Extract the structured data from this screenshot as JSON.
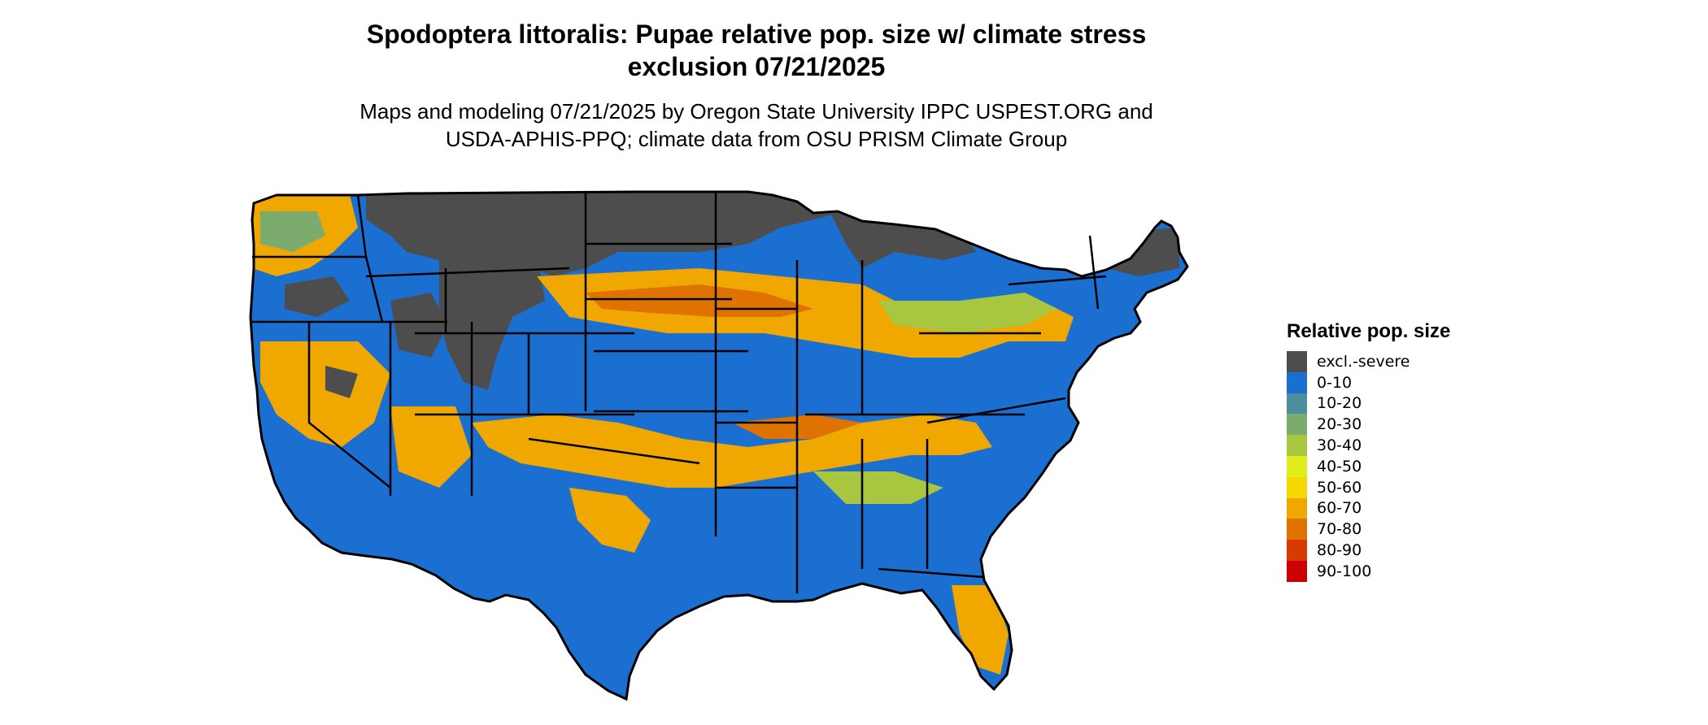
{
  "title": {
    "line1": "Spodoptera littoralis: Pupae relative pop. size w/ climate stress",
    "line2": "exclusion 07/21/2025"
  },
  "subtitle": {
    "line1": "Maps and modeling 07/21/2025 by Oregon State University IPPC USPEST.ORG and",
    "line2": "USDA-APHIS-PPQ; climate data from OSU PRISM Climate Group"
  },
  "legend": {
    "title": "Relative pop. size",
    "items": [
      {
        "label": "excl.-severe",
        "color": "#4d4d4d"
      },
      {
        "label": "0-10",
        "color": "#1a6fd1"
      },
      {
        "label": "10-20",
        "color": "#4b8ea0"
      },
      {
        "label": "20-30",
        "color": "#7cab6e"
      },
      {
        "label": "30-40",
        "color": "#a8c640"
      },
      {
        "label": "40-50",
        "color": "#dfee1a"
      },
      {
        "label": "50-60",
        "color": "#f5d800"
      },
      {
        "label": "60-70",
        "color": "#f0a800"
      },
      {
        "label": "70-80",
        "color": "#e07200"
      },
      {
        "label": "80-90",
        "color": "#d93a00"
      },
      {
        "label": "90-100",
        "color": "#cc0000"
      }
    ]
  },
  "map": {
    "region": "Contiguous United States",
    "outline_color": "#000000"
  }
}
